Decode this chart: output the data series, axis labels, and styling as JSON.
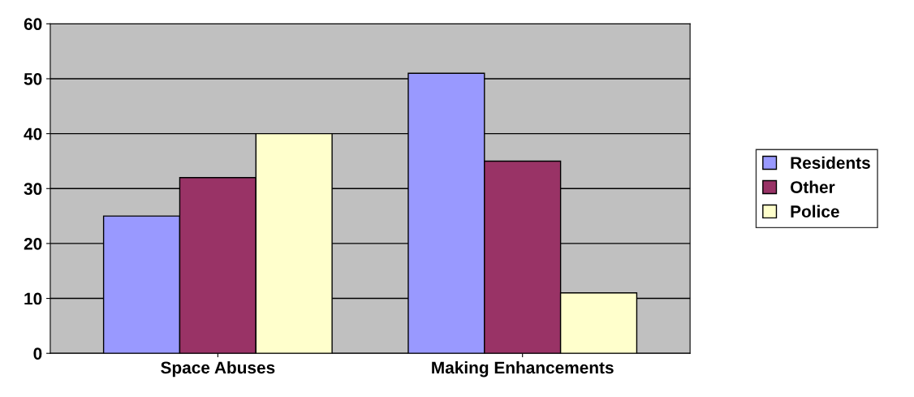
{
  "chart_data": {
    "type": "bar",
    "categories": [
      "Space Abuses",
      "Making Enhancements"
    ],
    "series": [
      {
        "name": "Residents",
        "color": "#9999ff",
        "values": [
          25,
          51
        ]
      },
      {
        "name": "Other",
        "color": "#993366",
        "values": [
          32,
          35
        ]
      },
      {
        "name": "Police",
        "color": "#ffffcc",
        "values": [
          40,
          11
        ]
      }
    ],
    "ylim": [
      0,
      60
    ],
    "yticks": [
      0,
      10,
      20,
      30,
      40,
      50,
      60
    ],
    "grid": "y",
    "legend": "right"
  }
}
